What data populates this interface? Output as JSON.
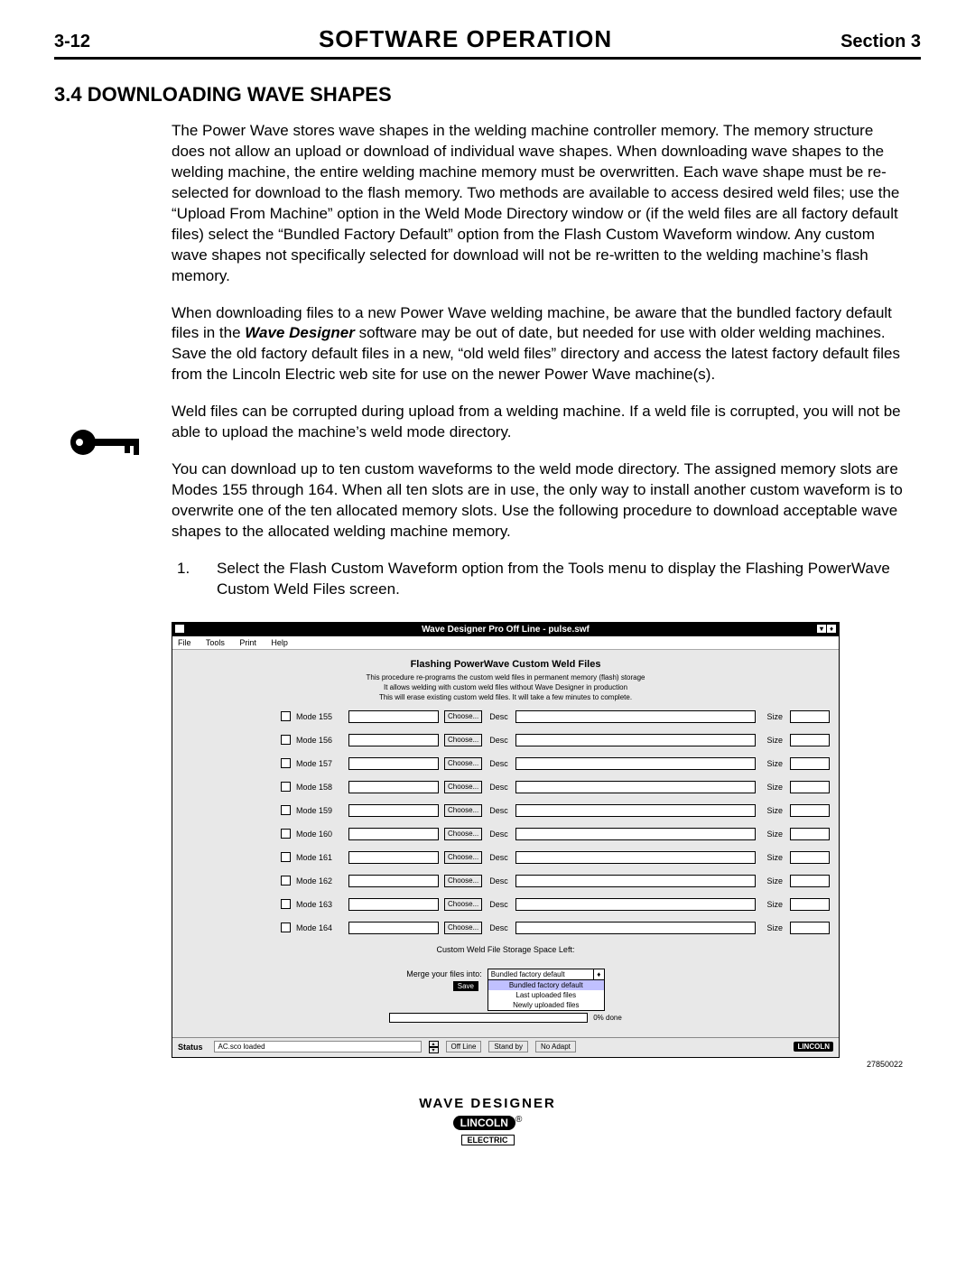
{
  "header": {
    "page_num": "3-12",
    "title": "SOFTWARE  OPERATION",
    "section": "Section 3"
  },
  "heading": "3.4  DOWNLOADING WAVE SHAPES",
  "para1": "The Power Wave stores wave shapes in the welding machine controller memory. The memory structure does not allow an upload or download of individual wave shapes. When downloading wave shapes to the welding machine, the entire welding machine memory must be overwritten. Each wave shape must be re-selected for download to the flash memory. Two methods are available to access desired weld files; use the “Upload From Machine” option in the Weld Mode Directory window or (if the weld files are all factory default files) select the “Bundled Factory Default” option from the Flash Custom Waveform window. Any custom wave shapes not specifically selected for download will not be re-written to the welding machine’s flash memory.",
  "para2a": "When downloading files to a new Power Wave welding machine, be aware that the bundled factory default files in the ",
  "para2_em": "Wave Designer",
  "para2b": " software may be out of date, but needed for use with older welding machines. Save the old factory default files in a new, “old weld files” directory and access the latest factory default files from the Lincoln Electric web site for use on the newer Power Wave machine(s).",
  "para3": "Weld files can be corrupted during upload from a welding machine. If a weld file is corrupted, you will not be able to upload the machine’s weld mode directory.",
  "para4": "You can download up to ten custom waveforms to the weld mode directory. The assigned memory slots are Modes 155 through 164. When all ten slots are in use, the only way to install another custom waveform is to overwrite one of the ten allocated memory slots. Use the following procedure to download acceptable wave shapes to the allocated welding machine memory.",
  "step1": "Select the Flash Custom Waveform option from the Tools menu to display the Flashing PowerWave Custom Weld Files screen.",
  "app": {
    "title": "Wave Designer Pro Off Line - pulse.swf",
    "menus": [
      "File",
      "Tools",
      "Print",
      "Help"
    ],
    "heading": "Flashing PowerWave Custom Weld Files",
    "note1": "This procedure re-programs the custom weld files in permanent memory (flash) storage",
    "note2": "It allows welding with custom weld files without Wave Designer in production",
    "note3": "This will erase existing custom weld files. It will take a few minutes to complete.",
    "choose": "Choose...",
    "desc": "Desc",
    "size": "Size",
    "modes": [
      "Mode 155",
      "Mode 156",
      "Mode 157",
      "Mode 158",
      "Mode 159",
      "Mode 160",
      "Mode 161",
      "Mode 162",
      "Mode 163",
      "Mode 164"
    ],
    "storage": "Custom Weld File Storage Space Left:",
    "merge_label": "Merge your files into:",
    "combo_value": "Bundled factory default",
    "combo_opts": [
      "Bundled factory default",
      "Last uploaded files",
      "Newly uploaded files"
    ],
    "save": "Save",
    "pct": "0% done",
    "status_label": "Status",
    "status_msg": "AC.sco loaded",
    "offline": "Off Line",
    "standby": "Stand by",
    "noadapt": "No Adapt",
    "lincoln": "LINCOLN",
    "electric": "ELECTRIC"
  },
  "fig_num": "27850022",
  "footer": {
    "title": "WAVE  DESIGNER",
    "badge": "LINCOLN",
    "reg": "®",
    "sub": "ELECTRIC"
  }
}
